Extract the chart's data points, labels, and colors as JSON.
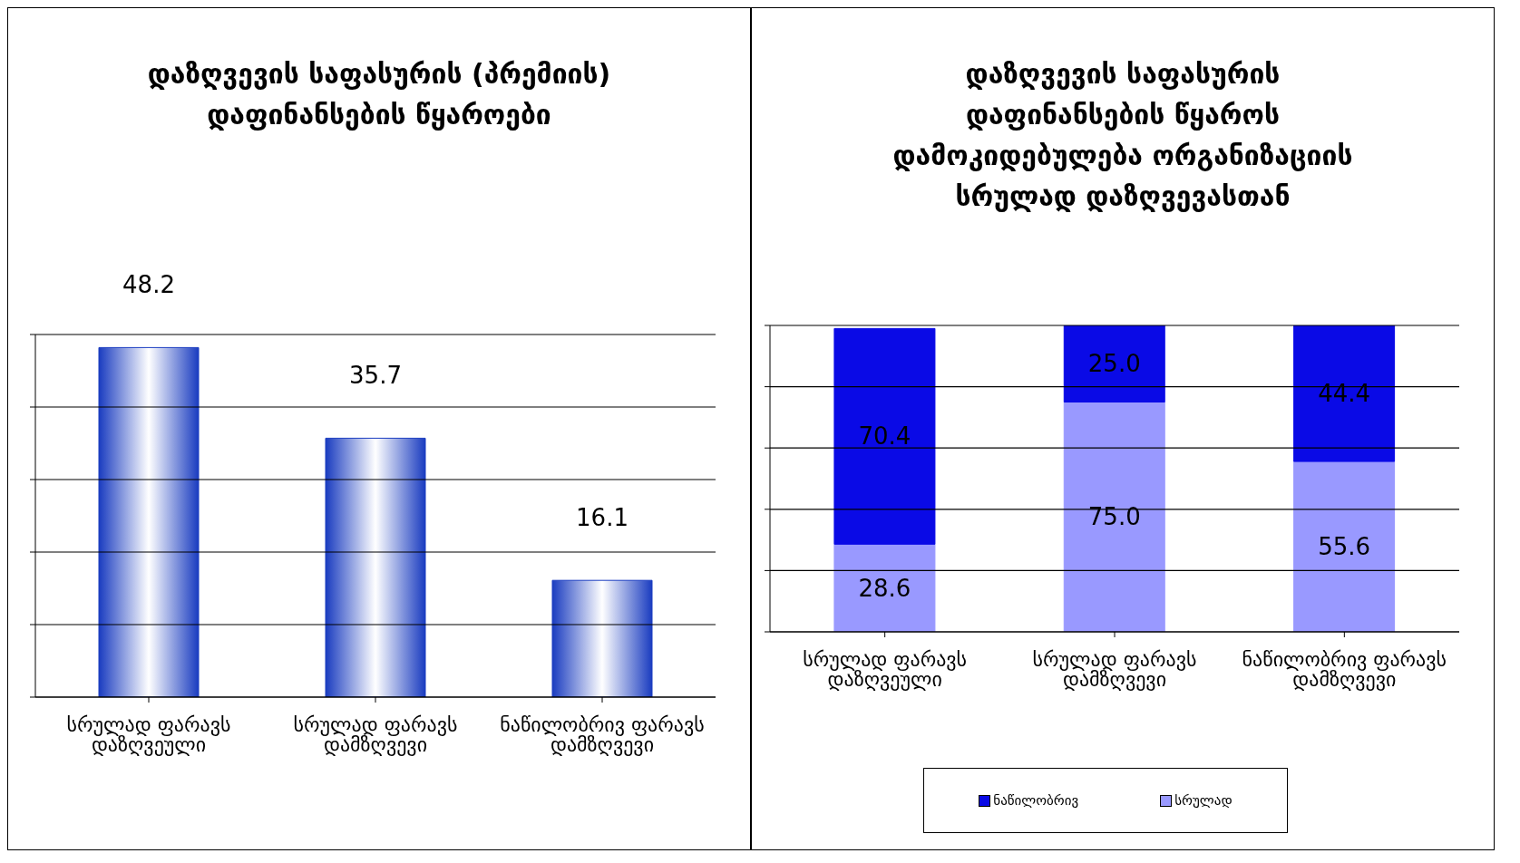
{
  "chart_data": [
    {
      "type": "bar",
      "title": "დაზღვევის საფასურის (პრემიის) დაფინანსების წყაროები",
      "categories": [
        "სრულად ფარავს დაზღვეული",
        "სრულად ფარავს დამზღვევი",
        "ნაწილობრივ ფარავს დამზღვევი"
      ],
      "values": [
        48.2,
        35.7,
        16.1
      ],
      "color": "#1a3cc0",
      "data_labels": true,
      "ylim": [
        0,
        50
      ],
      "yticks": [
        {
          "value": 0,
          "label": null
        },
        {
          "value": 10,
          "label": null
        },
        {
          "value": 20,
          "label": null
        },
        {
          "value": 30,
          "label": null
        },
        {
          "value": 40,
          "label": null
        },
        {
          "value": 50,
          "label": null
        }
      ],
      "tick_labels": "x",
      "grid": "y",
      "legend": false
    },
    {
      "type": "bar",
      "title": "დაზღვევის საფასურის დაფინანსების წყაროს დამოკიდებულება ორგანიზაციის სრულად დაზღვევასთან",
      "categories": [
        "სრულად ფარავს დაზღვეული",
        "სრულად ფარავს დამზღვევი",
        "ნაწილობრივ ფარავს დამზღვევი"
      ],
      "stacked": true,
      "series": [
        {
          "name": "სრულად",
          "color": "#9999ff",
          "values": [
            28.6,
            75.0,
            55.6
          ],
          "value_labels": [
            "28.6",
            "75.0",
            "55.6"
          ]
        },
        {
          "name": "ნაწილობრივ",
          "color": "#0a0ae6",
          "values": [
            70.4,
            25.0,
            44.4
          ],
          "value_labels": [
            "70.4",
            "25.0",
            "44.4"
          ]
        }
      ],
      "ylim": [
        0,
        100
      ],
      "yticks": [
        {
          "value": 0,
          "label": null
        },
        {
          "value": 20,
          "label": null
        },
        {
          "value": 40,
          "label": null
        },
        {
          "value": 60,
          "label": null
        },
        {
          "value": 80,
          "label": null
        },
        {
          "value": 100,
          "label": null
        }
      ],
      "tick_labels": "x",
      "grid": "y",
      "legend": "bottom"
    }
  ]
}
